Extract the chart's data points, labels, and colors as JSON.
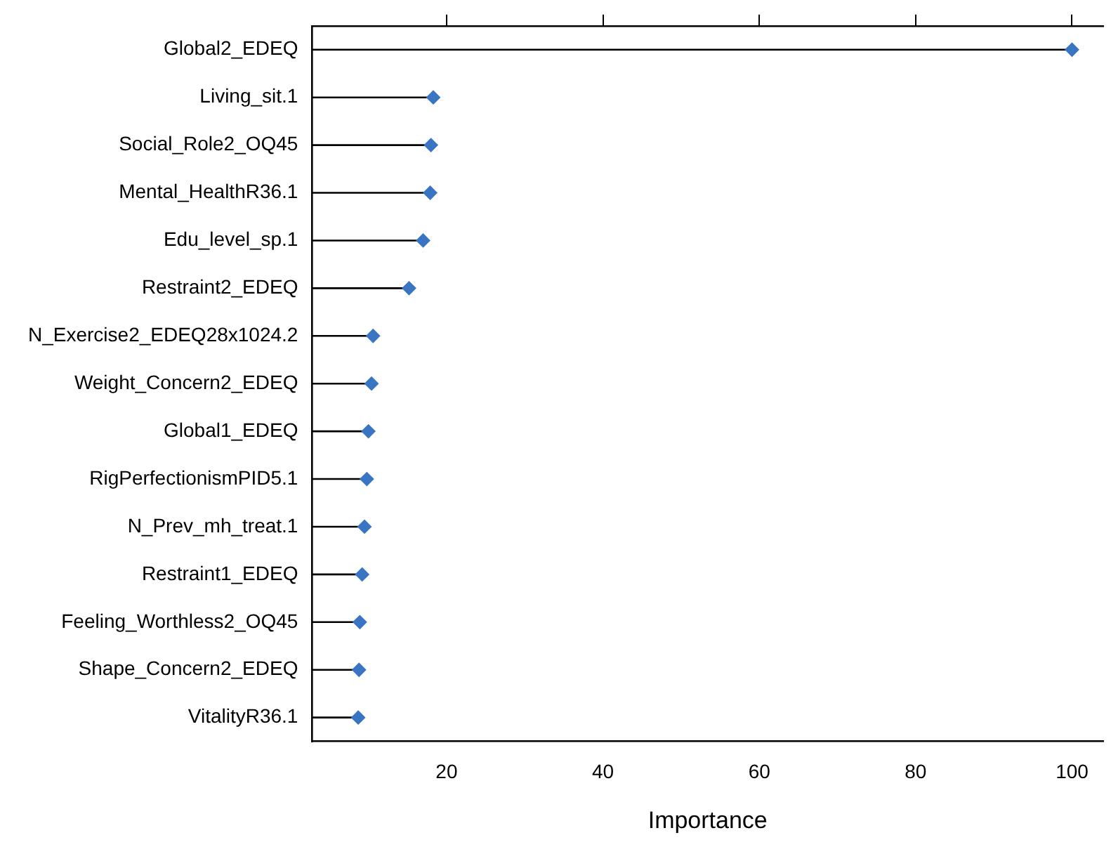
{
  "chart_data": {
    "type": "lollipop",
    "orientation": "horizontal",
    "xlabel": "Importance",
    "categories": [
      "Global2_EDEQ",
      "Living_sit.1",
      "Social_Role2_OQ45",
      "Mental_HealthR36.1",
      "Edu_level_sp.1",
      "Restraint2_EDEQ",
      "N_Exercise2_EDEQ28x1024.2",
      "Weight_Concern2_EDEQ",
      "Global1_EDEQ",
      "RigPerfectionismPID5.1",
      "N_Prev_mh_treat.1",
      "Restraint1_EDEQ",
      "Feeling_Worthless2_OQ45",
      "Shape_Concern2_EDEQ",
      "VitalityR36.1"
    ],
    "values": [
      100,
      18.3,
      18.0,
      17.9,
      17.0,
      15.2,
      10.6,
      10.4,
      10.0,
      9.8,
      9.5,
      9.2,
      8.9,
      8.8,
      8.7
    ],
    "color": "#3a75c4",
    "marker": "diamond",
    "xlim": [
      2.8,
      104
    ],
    "xticks": [
      20,
      40,
      60,
      80,
      100
    ],
    "grid": false,
    "legend": false
  }
}
